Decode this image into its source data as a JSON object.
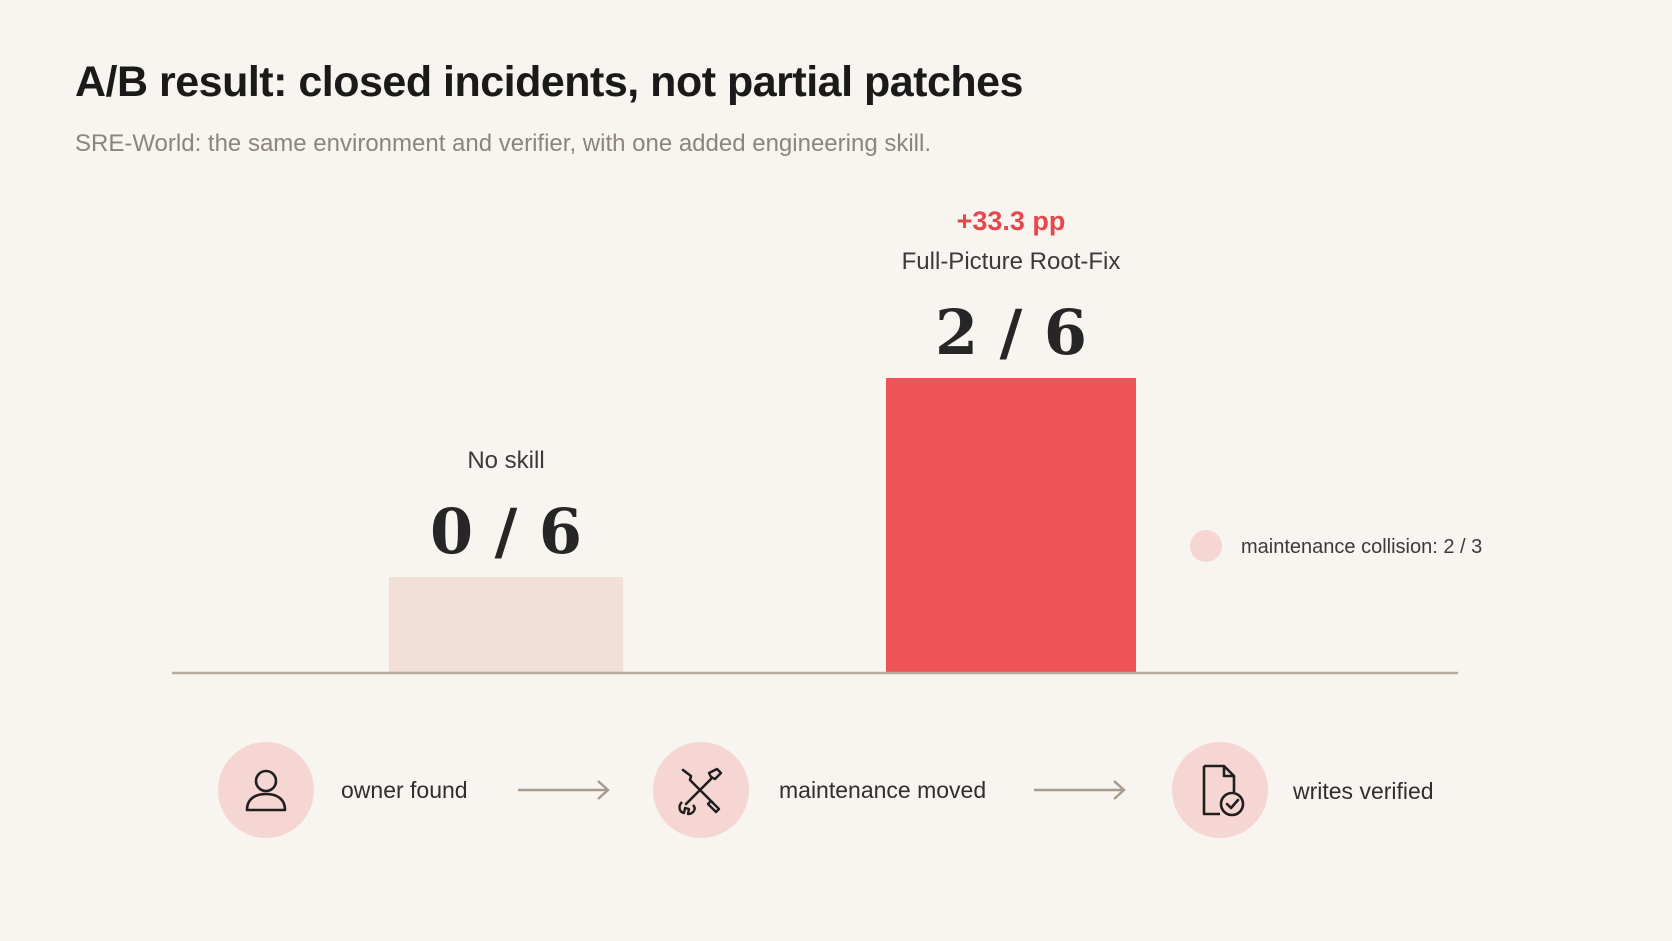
{
  "header": {
    "title": "A/B result: closed incidents, not partial patches",
    "subtitle": "SRE-World: the same environment and verifier, with one added engineering skill."
  },
  "colors": {
    "background": "#f8f4ef",
    "baseline_bar": "#f2dfd6",
    "skill_bar": "#ee5457",
    "accent": "#e5484d",
    "icon_circle": "#f6d6d2",
    "axis": "#b7aa9c"
  },
  "chart_data": {
    "type": "bar",
    "categories": [
      "No skill",
      "Full-Picture Root-Fix"
    ],
    "series": [
      {
        "values": [
          0,
          2
        ],
        "totals": [
          6,
          6
        ],
        "value_labels": [
          "0 / 6",
          "2 / 6"
        ]
      }
    ],
    "ylim": [
      0,
      6
    ],
    "annotations": [
      {
        "category": "Full-Picture Root-Fix",
        "text": "+33.3 pp"
      }
    ],
    "legend": [
      {
        "label": "maintenance collision: 2 / 3",
        "color": "#f6d6d2"
      }
    ],
    "legend_position": "right",
    "grid": false,
    "xlabel": "",
    "ylabel": ""
  },
  "flow": {
    "steps": [
      {
        "label": "owner found",
        "icon": "person-icon"
      },
      {
        "label": "maintenance moved",
        "icon": "tools-icon"
      },
      {
        "label": "writes verified",
        "icon": "document-check-icon"
      }
    ]
  }
}
